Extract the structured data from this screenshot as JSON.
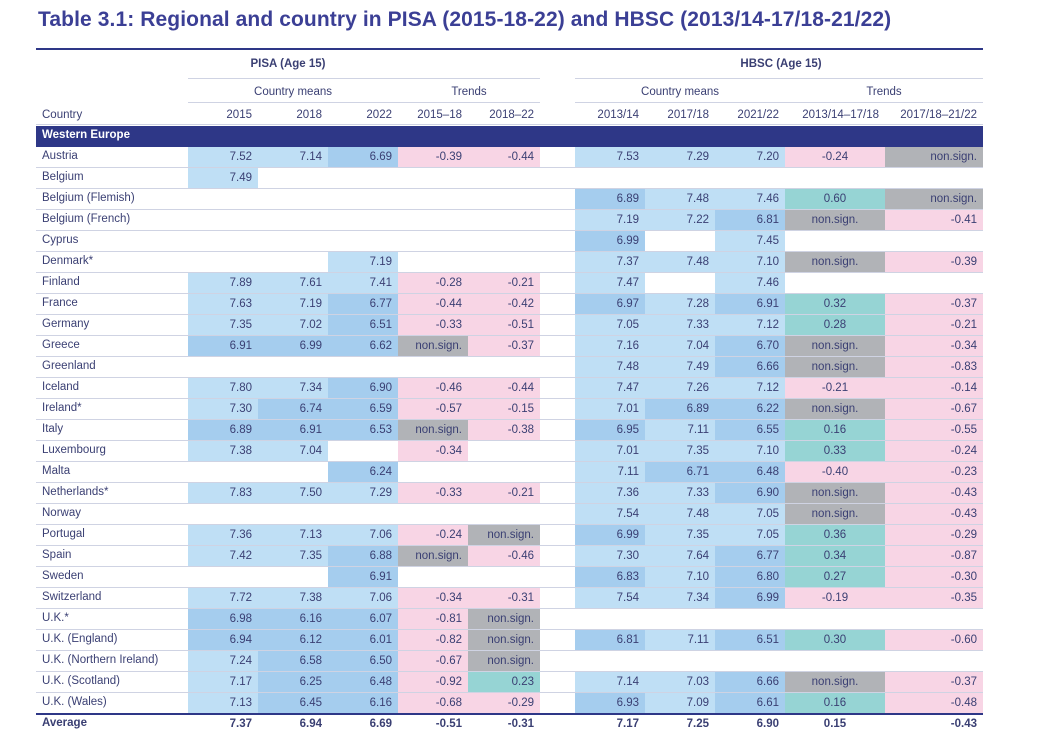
{
  "title": "Table 3.1: Regional and country in PISA (2015-18-22) and HBSC (2013/14-17/18-21/22)",
  "headers": {
    "pisa": "PISA (Age 15)",
    "hbsc": "HBSC (Age 15)",
    "country_means": "Country means",
    "trends": "Trends",
    "country": "Country",
    "pisa_cols": [
      "2015",
      "2018",
      "2022",
      "2015–18",
      "2018–22"
    ],
    "hbsc_cols": [
      "2013/14",
      "2017/18",
      "2021/22",
      "2013/14–17/18",
      "2017/18–21/22"
    ]
  },
  "region": "Western Europe",
  "rows": [
    {
      "country": "Austria",
      "pisa": [
        "7.52",
        "7.14",
        "6.69",
        "-0.39",
        "-0.44"
      ],
      "hbsc": [
        "7.53",
        "7.29",
        "7.20",
        "-0.24",
        "non.sign."
      ]
    },
    {
      "country": "Belgium",
      "pisa": [
        "7.49",
        "",
        "",
        "",
        ""
      ],
      "hbsc": [
        "",
        "",
        "",
        "",
        ""
      ]
    },
    {
      "country": "Belgium (Flemish)",
      "pisa": [
        "",
        "",
        "",
        "",
        ""
      ],
      "hbsc": [
        "6.89",
        "7.48",
        "7.46",
        "0.60",
        "non.sign."
      ]
    },
    {
      "country": "Belgium (French)",
      "pisa": [
        "",
        "",
        "",
        "",
        ""
      ],
      "hbsc": [
        "7.19",
        "7.22",
        "6.81",
        "non.sign.",
        "-0.41"
      ]
    },
    {
      "country": "Cyprus",
      "pisa": [
        "",
        "",
        "",
        "",
        ""
      ],
      "hbsc": [
        "6.99",
        "",
        "7.45",
        "",
        ""
      ]
    },
    {
      "country": "Denmark*",
      "pisa": [
        "",
        "",
        "7.19",
        "",
        ""
      ],
      "hbsc": [
        "7.37",
        "7.48",
        "7.10",
        "non.sign.",
        "-0.39"
      ]
    },
    {
      "country": "Finland",
      "pisa": [
        "7.89",
        "7.61",
        "7.41",
        "-0.28",
        "-0.21"
      ],
      "hbsc": [
        "7.47",
        "",
        "7.46",
        "",
        ""
      ]
    },
    {
      "country": "France",
      "pisa": [
        "7.63",
        "7.19",
        "6.77",
        "-0.44",
        "-0.42"
      ],
      "hbsc": [
        "6.97",
        "7.28",
        "6.91",
        "0.32",
        "-0.37"
      ]
    },
    {
      "country": "Germany",
      "pisa": [
        "7.35",
        "7.02",
        "6.51",
        "-0.33",
        "-0.51"
      ],
      "hbsc": [
        "7.05",
        "7.33",
        "7.12",
        "0.28",
        "-0.21"
      ]
    },
    {
      "country": "Greece",
      "pisa": [
        "6.91",
        "6.99",
        "6.62",
        "non.sign.",
        "-0.37"
      ],
      "hbsc": [
        "7.16",
        "7.04",
        "6.70",
        "non.sign.",
        "-0.34"
      ]
    },
    {
      "country": "Greenland",
      "pisa": [
        "",
        "",
        "",
        "",
        ""
      ],
      "hbsc": [
        "7.48",
        "7.49",
        "6.66",
        "non.sign.",
        "-0.83"
      ]
    },
    {
      "country": "Iceland",
      "pisa": [
        "7.80",
        "7.34",
        "6.90",
        "-0.46",
        "-0.44"
      ],
      "hbsc": [
        "7.47",
        "7.26",
        "7.12",
        "-0.21",
        "-0.14"
      ]
    },
    {
      "country": "Ireland*",
      "pisa": [
        "7.30",
        "6.74",
        "6.59",
        "-0.57",
        "-0.15"
      ],
      "hbsc": [
        "7.01",
        "6.89",
        "6.22",
        "non.sign.",
        "-0.67"
      ]
    },
    {
      "country": "Italy",
      "pisa": [
        "6.89",
        "6.91",
        "6.53",
        "non.sign.",
        "-0.38"
      ],
      "hbsc": [
        "6.95",
        "7.11",
        "6.55",
        "0.16",
        "-0.55"
      ]
    },
    {
      "country": "Luxembourg",
      "pisa": [
        "7.38",
        "7.04",
        "",
        "-0.34",
        ""
      ],
      "hbsc": [
        "7.01",
        "7.35",
        "7.10",
        "0.33",
        "-0.24"
      ]
    },
    {
      "country": "Malta",
      "pisa": [
        "",
        "",
        "6.24",
        "",
        ""
      ],
      "hbsc": [
        "7.11",
        "6.71",
        "6.48",
        "-0.40",
        "-0.23"
      ]
    },
    {
      "country": "Netherlands*",
      "pisa": [
        "7.83",
        "7.50",
        "7.29",
        "-0.33",
        "-0.21"
      ],
      "hbsc": [
        "7.36",
        "7.33",
        "6.90",
        "non.sign.",
        "-0.43"
      ]
    },
    {
      "country": "Norway",
      "pisa": [
        "",
        "",
        "",
        "",
        ""
      ],
      "hbsc": [
        "7.54",
        "7.48",
        "7.05",
        "non.sign.",
        "-0.43"
      ]
    },
    {
      "country": "Portugal",
      "pisa": [
        "7.36",
        "7.13",
        "7.06",
        "-0.24",
        "non.sign."
      ],
      "hbsc": [
        "6.99",
        "7.35",
        "7.05",
        "0.36",
        "-0.29"
      ]
    },
    {
      "country": "Spain",
      "pisa": [
        "7.42",
        "7.35",
        "6.88",
        "non.sign.",
        "-0.46"
      ],
      "hbsc": [
        "7.30",
        "7.64",
        "6.77",
        "0.34",
        "-0.87"
      ]
    },
    {
      "country": "Sweden",
      "pisa": [
        "",
        "",
        "6.91",
        "",
        ""
      ],
      "hbsc": [
        "6.83",
        "7.10",
        "6.80",
        "0.27",
        "-0.30"
      ]
    },
    {
      "country": "Switzerland",
      "pisa": [
        "7.72",
        "7.38",
        "7.06",
        "-0.34",
        "-0.31"
      ],
      "hbsc": [
        "7.54",
        "7.34",
        "6.99",
        "-0.19",
        "-0.35"
      ]
    },
    {
      "country": "U.K.*",
      "pisa": [
        "6.98",
        "6.16",
        "6.07",
        "-0.81",
        "non.sign."
      ],
      "hbsc": [
        "",
        "",
        "",
        "",
        ""
      ]
    },
    {
      "country": "U.K. (England)",
      "pisa": [
        "6.94",
        "6.12",
        "6.01",
        "-0.82",
        "non.sign."
      ],
      "hbsc": [
        "6.81",
        "7.11",
        "6.51",
        "0.30",
        "-0.60"
      ]
    },
    {
      "country": "U.K. (Northern Ireland)",
      "pisa": [
        "7.24",
        "6.58",
        "6.50",
        "-0.67",
        "non.sign."
      ],
      "hbsc": [
        "",
        "",
        "",
        "",
        ""
      ]
    },
    {
      "country": "U.K. (Scotland)",
      "pisa": [
        "7.17",
        "6.25",
        "6.48",
        "-0.92",
        "0.23"
      ],
      "hbsc": [
        "7.14",
        "7.03",
        "6.66",
        "non.sign.",
        "-0.37"
      ]
    },
    {
      "country": "U.K. (Wales)",
      "pisa": [
        "7.13",
        "6.45",
        "6.16",
        "-0.68",
        "-0.29"
      ],
      "hbsc": [
        "6.93",
        "7.09",
        "6.61",
        "0.16",
        "-0.48"
      ]
    }
  ],
  "average": {
    "country": "Average",
    "pisa": [
      "7.37",
      "6.94",
      "6.69",
      "-0.51",
      "-0.31"
    ],
    "hbsc": [
      "7.17",
      "7.25",
      "6.90",
      "0.15",
      "-0.43"
    ]
  },
  "cell_colors": {
    "mean_light": "#bfdff5",
    "mean_mid": "#a5cdee",
    "negative_trend": "#f8d5e5",
    "non_significant": "#b1b3b7",
    "positive_trend": "#96d4d4",
    "header_blue": "#2e3787"
  }
}
